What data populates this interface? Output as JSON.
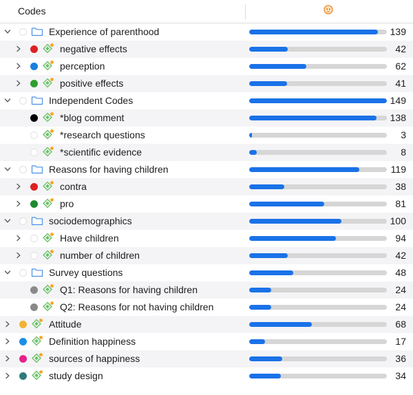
{
  "header": {
    "title": "Codes",
    "icon": "memo-face-icon"
  },
  "colors": {
    "bar_fill": "#1a72e8",
    "bar_track": "#d6d6d6",
    "alt_row": "#f4f4f6",
    "folder": "#4a90e2",
    "code_icon": "#6abf69",
    "code_badge": "#f5a623"
  },
  "max_count": 149,
  "rows": [
    {
      "label": "Experience of parenthood",
      "count": 139,
      "level": 0,
      "type": "folder",
      "chevron": "down",
      "color": null
    },
    {
      "label": "negative effects",
      "count": 42,
      "level": 1,
      "type": "code",
      "chevron": "right",
      "color": "#e02020"
    },
    {
      "label": "perception",
      "count": 62,
      "level": 1,
      "type": "code",
      "chevron": "right",
      "color": "#1a7fe0"
    },
    {
      "label": "positive effects",
      "count": 41,
      "level": 1,
      "type": "code",
      "chevron": "right",
      "color": "#2e9e2e"
    },
    {
      "label": "Independent Codes",
      "count": 149,
      "level": 0,
      "type": "folder",
      "chevron": "down",
      "color": null
    },
    {
      "label": "*blog comment",
      "count": 138,
      "level": 1,
      "type": "code",
      "chevron": "none",
      "color": "#000000"
    },
    {
      "label": "*research questions",
      "count": 3,
      "level": 1,
      "type": "code",
      "chevron": "none",
      "color": null
    },
    {
      "label": "*scientific evidence",
      "count": 8,
      "level": 1,
      "type": "code",
      "chevron": "none",
      "color": null
    },
    {
      "label": "Reasons for having children",
      "count": 119,
      "level": 0,
      "type": "folder",
      "chevron": "down",
      "color": null
    },
    {
      "label": "contra",
      "count": 38,
      "level": 1,
      "type": "code",
      "chevron": "right",
      "color": "#e02020"
    },
    {
      "label": "pro",
      "count": 81,
      "level": 1,
      "type": "code",
      "chevron": "right",
      "color": "#1e8a2e"
    },
    {
      "label": "sociodemographics",
      "count": 100,
      "level": 0,
      "type": "folder",
      "chevron": "down",
      "color": null
    },
    {
      "label": "Have children",
      "count": 94,
      "level": 1,
      "type": "code",
      "chevron": "right",
      "color": null
    },
    {
      "label": "number of children",
      "count": 42,
      "level": 1,
      "type": "code",
      "chevron": "right",
      "color": null
    },
    {
      "label": "Survey questions",
      "count": 48,
      "level": 0,
      "type": "folder",
      "chevron": "down",
      "color": null
    },
    {
      "label": "Q1: Reasons for having children",
      "count": 24,
      "level": 1,
      "type": "code",
      "chevron": "none",
      "color": "#8a8a8a"
    },
    {
      "label": "Q2: Reasons for not having children",
      "count": 24,
      "level": 1,
      "type": "code",
      "chevron": "none",
      "color": "#8a8a8a"
    },
    {
      "label": "Attitude",
      "count": 68,
      "level": 0,
      "type": "code",
      "chevron": "right",
      "color": "#f2b233"
    },
    {
      "label": "Definition happiness",
      "count": 17,
      "level": 0,
      "type": "code",
      "chevron": "right",
      "color": "#1a8fe8"
    },
    {
      "label": "sources of happiness",
      "count": 36,
      "level": 0,
      "type": "code",
      "chevron": "right",
      "color": "#e8208a"
    },
    {
      "label": "study design",
      "count": 34,
      "level": 0,
      "type": "code",
      "chevron": "right",
      "color": "#2f7a7a"
    }
  ]
}
